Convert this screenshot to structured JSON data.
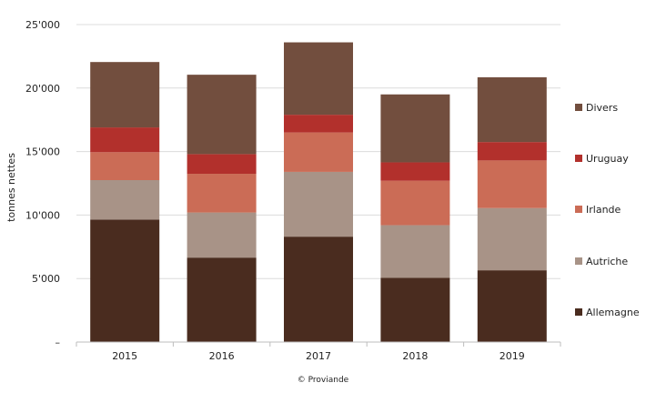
{
  "chart_data": {
    "type": "bar",
    "stacked": true,
    "categories": [
      "2015",
      "2016",
      "2017",
      "2018",
      "2019"
    ],
    "series": [
      {
        "name": "Allemagne",
        "color": "#4a2c1f",
        "values": [
          9650,
          6650,
          8300,
          5050,
          5650
        ]
      },
      {
        "name": "Autriche",
        "color": "#a89387",
        "values": [
          3100,
          3550,
          5100,
          4150,
          4900
        ]
      },
      {
        "name": "Irlande",
        "color": "#cb6c56",
        "values": [
          2200,
          3050,
          3100,
          3500,
          3750
        ]
      },
      {
        "name": "Uruguay",
        "color": "#b2302c",
        "values": [
          1950,
          1550,
          1400,
          1450,
          1450
        ]
      },
      {
        "name": "Divers",
        "color": "#724e3e",
        "values": [
          5150,
          6250,
          5700,
          5350,
          5100
        ]
      }
    ],
    "ylabel": "tonnes nettes",
    "xlabel": "",
    "ylim": [
      0,
      25000
    ],
    "yticks": [
      {
        "value": 0,
        "label": "–"
      },
      {
        "value": 5000,
        "label": "5'000"
      },
      {
        "value": 10000,
        "label": "10'000"
      },
      {
        "value": 15000,
        "label": "15'000"
      },
      {
        "value": 20000,
        "label": "20'000"
      },
      {
        "value": 25000,
        "label": "25'000"
      }
    ],
    "grid": true,
    "legend_position": "right",
    "legend_order": [
      "Divers",
      "Uruguay",
      "Irlande",
      "Autriche",
      "Allemagne"
    ]
  },
  "credit": "© Proviande"
}
